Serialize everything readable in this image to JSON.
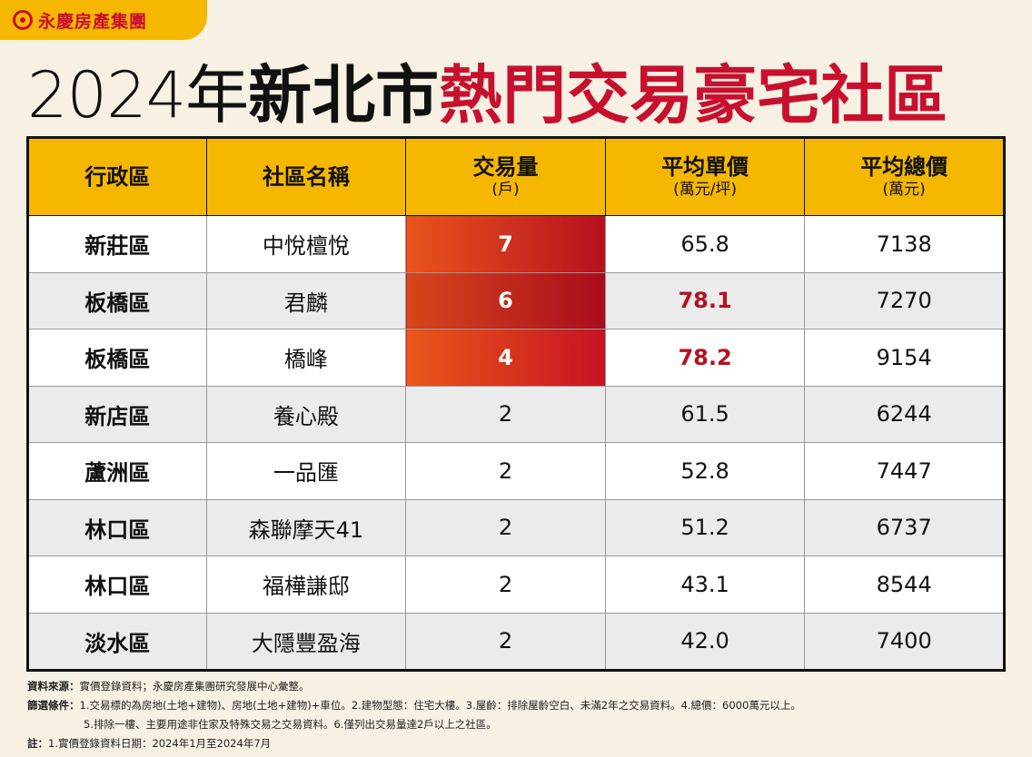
{
  "brand": {
    "name": "永慶房產集團"
  },
  "title": {
    "year": "2024年",
    "city": "新北市",
    "rest": "熱門交易豪宅社區"
  },
  "table": {
    "headers": [
      {
        "label": "行政區",
        "sub": ""
      },
      {
        "label": "社區名稱",
        "sub": ""
      },
      {
        "label": "交易量",
        "sub": "(戶)"
      },
      {
        "label": "平均單價",
        "sub": "(萬元/坪)"
      },
      {
        "label": "平均總價",
        "sub": "(萬元)"
      }
    ],
    "rows": [
      [
        "新莊區",
        "中悅檀悅",
        "7",
        "65.8",
        "7138"
      ],
      [
        "板橋區",
        "君麟",
        "6",
        "78.1",
        "7270"
      ],
      [
        "板橋區",
        "橋峰",
        "4",
        "78.2",
        "9154"
      ],
      [
        "新店區",
        "養心殿",
        "2",
        "61.5",
        "6244"
      ],
      [
        "蘆洲區",
        "一品匯",
        "2",
        "52.8",
        "7447"
      ],
      [
        "林口區",
        "森聯摩天41",
        "2",
        "51.2",
        "6737"
      ],
      [
        "林口區",
        "福樺謙邸",
        "2",
        "43.1",
        "8544"
      ],
      [
        "淡水區",
        "大隱豐盈海",
        "2",
        "42.0",
        "7400"
      ]
    ],
    "highlight_color_hot": "#c8102e",
    "highlight_color_red_text": "#b3121f"
  },
  "notes": {
    "source_label": "資料來源：",
    "source": "實價登錄資料；永慶房產集團研究發展中心彙整。",
    "filter_label": "篩選條件：",
    "filter_1": "1.交易標的為房地(土地+建物)、房地(土地+建物)+車位。2.建物型態：住宅大樓。3.屋齡：排除屋齡空白、未滿2年之交易資料。4.總價：6000萬元以上。",
    "filter_2": "5.排除一樓、主要用途非住家及特殊交易之交易資料。6.僅列出交易量達2戶以上之社區。",
    "note_label": "註：",
    "note": "1.實價登錄資料日期：2024年1月至2024年7月"
  },
  "colors": {
    "accent": "#f5b700",
    "red": "#c8102e",
    "background": "#f6f1e3"
  }
}
